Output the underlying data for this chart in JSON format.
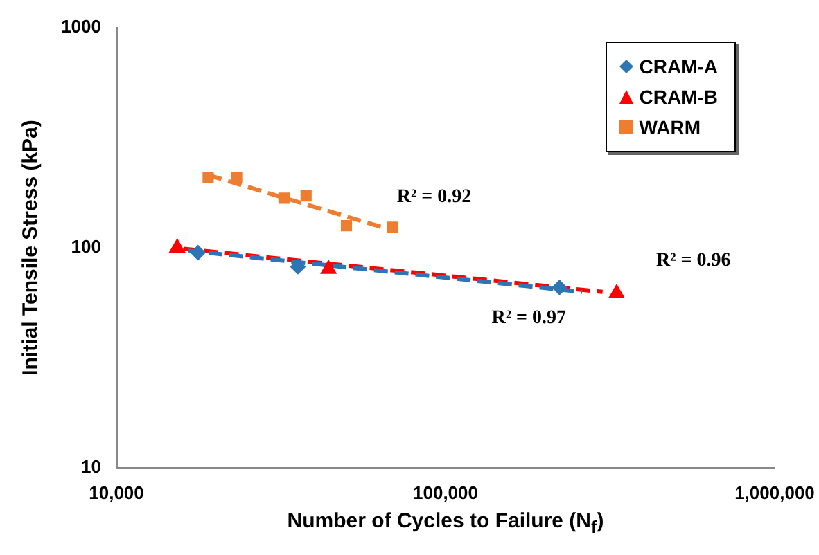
{
  "chart_data": {
    "type": "scatter",
    "xlabel": "Number of Cycles to Failure (N$_{f}$)",
    "ylabel": "Initial Tensile Stress (kPa)",
    "log": "xy",
    "xlim": [
      10000,
      1000000
    ],
    "ylim": [
      10,
      1000
    ],
    "xticks": [
      {
        "value": 10000,
        "label": "10,000"
      },
      {
        "value": 100000,
        "label": "100,000"
      },
      {
        "value": 1000000,
        "label": "1,000,000"
      }
    ],
    "yticks": [
      10,
      100,
      1000
    ],
    "legend": "top right",
    "series": [
      {
        "name": "CRAM-A",
        "marker": "diamond",
        "color": "#2e75b6",
        "x": [
          17700,
          35600,
          222000
        ],
        "values": [
          95,
          82,
          66
        ]
      },
      {
        "name": "CRAM-B",
        "marker": "triangle",
        "color": "#ff0000",
        "x": [
          15300,
          44100,
          331000
        ],
        "values": [
          100,
          80,
          62
        ]
      },
      {
        "name": "WARM",
        "marker": "square",
        "color": "#ed7d31",
        "x": [
          19000,
          23200,
          32300,
          37700,
          50000,
          68900
        ],
        "values": [
          209,
          209,
          168,
          172,
          126,
          124
        ]
      },
      {
        "type": "line",
        "line_style": "dashed",
        "color": "#2e75b6",
        "x": [
          16500,
          260000
        ],
        "values": [
          97,
          63
        ]
      },
      {
        "type": "line",
        "line_style": "dashed",
        "color": "#ff0000",
        "x": [
          16000,
          300000
        ],
        "values": [
          99,
          63
        ]
      },
      {
        "type": "line",
        "line_style": "dashed",
        "color": "#ed7d31",
        "x": [
          19000,
          69000
        ],
        "values": [
          214,
          120
        ]
      }
    ],
    "annotations": [
      "R² = 0.92",
      "R² = 0.96",
      "R² = 0.97"
    ]
  }
}
